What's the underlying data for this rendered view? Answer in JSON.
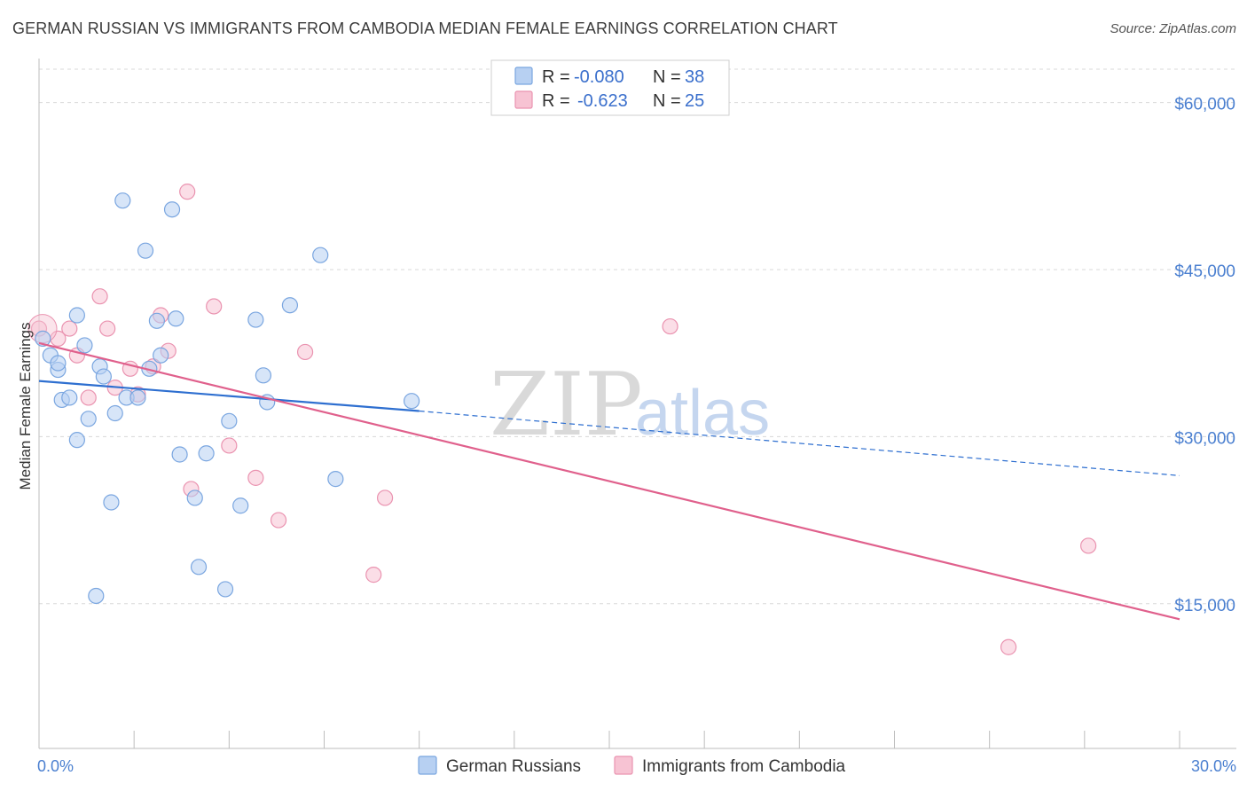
{
  "title": "GERMAN RUSSIAN VS IMMIGRANTS FROM CAMBODIA MEDIAN FEMALE EARNINGS CORRELATION CHART",
  "source": "Source: ZipAtlas.com",
  "colors": {
    "blue_fill": "#b7d0f2",
    "blue_stroke": "#7aa6e0",
    "blue_line": "#2e6fd0",
    "pink_fill": "#f7c3d3",
    "pink_stroke": "#ea93b0",
    "pink_line": "#e0608c",
    "grid": "#d8d8d8",
    "tick_label": "#4a7fd0"
  },
  "chart_data": {
    "type": "scatter",
    "title": "GERMAN RUSSIAN VS IMMIGRANTS FROM CAMBODIA MEDIAN FEMALE EARNINGS CORRELATION CHART",
    "xlabel": "",
    "ylabel": "Median Female Earnings",
    "xlim": [
      0,
      30
    ],
    "ylim": [
      2000,
      63000
    ],
    "x_tick_labels": [
      {
        "value": 0,
        "label": "0.0%"
      },
      {
        "value": 30,
        "label": "30.0%"
      }
    ],
    "y_ticks": [
      {
        "value": 60000,
        "label": "$60,000"
      },
      {
        "value": 45000,
        "label": "$45,000"
      },
      {
        "value": 30000,
        "label": "$30,000"
      },
      {
        "value": 15000,
        "label": "$15,000"
      }
    ],
    "legend": {
      "entries": [
        {
          "r_label": "R =",
          "r_value": "-0.080",
          "n_label": "N =",
          "n_value": "38"
        },
        {
          "r_label": "R =",
          "r_value": "-0.623",
          "n_label": "N =",
          "n_value": "25"
        }
      ]
    },
    "series": [
      {
        "name": "German Russians",
        "color": "blue",
        "trend": {
          "x0": 0,
          "y0": 35000,
          "x1": 10,
          "y1": 32300,
          "dashed_to_x": 30,
          "dashed_to_y": 26500
        },
        "points": [
          [
            0.1,
            38800
          ],
          [
            0.3,
            37300
          ],
          [
            0.5,
            36000
          ],
          [
            0.5,
            36600
          ],
          [
            0.6,
            33300
          ],
          [
            0.8,
            33500
          ],
          [
            1.0,
            29700
          ],
          [
            1.0,
            40900
          ],
          [
            1.2,
            38200
          ],
          [
            1.3,
            31600
          ],
          [
            1.5,
            15700
          ],
          [
            1.6,
            36300
          ],
          [
            1.7,
            35400
          ],
          [
            1.9,
            24100
          ],
          [
            2.0,
            32100
          ],
          [
            2.2,
            51200
          ],
          [
            2.3,
            33500
          ],
          [
            2.6,
            33500
          ],
          [
            2.8,
            46700
          ],
          [
            2.9,
            36100
          ],
          [
            3.1,
            40400
          ],
          [
            3.2,
            37300
          ],
          [
            3.5,
            50400
          ],
          [
            3.6,
            40600
          ],
          [
            3.7,
            28400
          ],
          [
            4.1,
            24500
          ],
          [
            4.2,
            18300
          ],
          [
            4.4,
            28500
          ],
          [
            4.9,
            16300
          ],
          [
            5.0,
            31400
          ],
          [
            5.3,
            23800
          ],
          [
            5.7,
            40500
          ],
          [
            5.9,
            35500
          ],
          [
            6.0,
            33100
          ],
          [
            6.6,
            41800
          ],
          [
            7.4,
            46300
          ],
          [
            7.8,
            26200
          ],
          [
            9.8,
            33200
          ]
        ]
      },
      {
        "name": "Immigrants from Cambodia",
        "color": "pink",
        "trend": {
          "x0": 0,
          "y0": 38400,
          "x1": 30,
          "y1": 13600
        },
        "points": [
          [
            0.0,
            39700
          ],
          [
            0.5,
            38800
          ],
          [
            0.8,
            39700
          ],
          [
            1.0,
            37300
          ],
          [
            1.3,
            33500
          ],
          [
            1.6,
            42600
          ],
          [
            1.8,
            39700
          ],
          [
            2.0,
            34400
          ],
          [
            2.4,
            36100
          ],
          [
            2.6,
            33800
          ],
          [
            3.0,
            36300
          ],
          [
            3.2,
            40900
          ],
          [
            3.4,
            37700
          ],
          [
            3.9,
            52000
          ],
          [
            4.0,
            25300
          ],
          [
            4.6,
            41700
          ],
          [
            5.0,
            29200
          ],
          [
            5.7,
            26300
          ],
          [
            6.3,
            22500
          ],
          [
            7.0,
            37600
          ],
          [
            8.8,
            17600
          ],
          [
            9.1,
            24500
          ],
          [
            16.6,
            39900
          ],
          [
            25.5,
            11100
          ],
          [
            27.6,
            20200
          ]
        ]
      }
    ]
  },
  "watermark": {
    "zip": "ZIP",
    "atlas": "atlas"
  }
}
